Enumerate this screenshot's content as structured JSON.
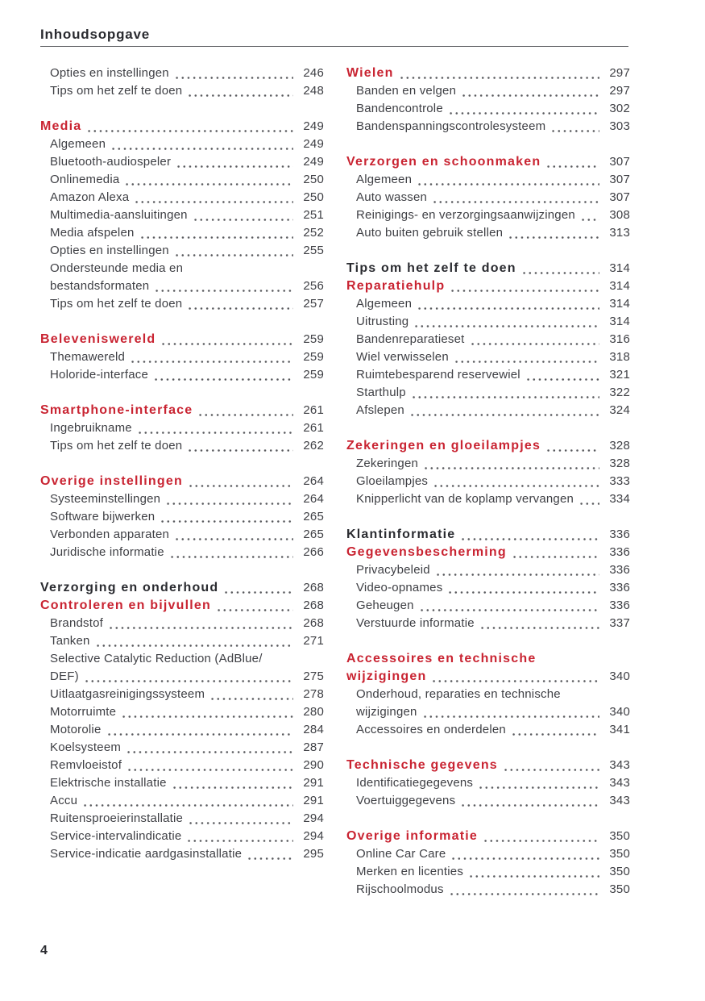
{
  "header": {
    "title": "Inhoudsopgave"
  },
  "footer": {
    "page_number": "4"
  },
  "colors": {
    "accent_red": "#c92432",
    "text": "#3e3f44",
    "heading": "#2a2b30",
    "dot_leader": "#595a5e"
  },
  "toc": {
    "left_column": [
      {
        "items": [
          {
            "t": "Opties en instellingen",
            "p": "246",
            "k": "sub"
          },
          {
            "t": "Tips om het zelf te doen",
            "p": "248",
            "k": "sub"
          }
        ]
      },
      {
        "items": [
          {
            "t": "Media",
            "p": "249",
            "k": "red"
          },
          {
            "t": "Algemeen",
            "p": "249",
            "k": "sub"
          },
          {
            "t": "Bluetooth-audiospeler",
            "p": "249",
            "k": "sub"
          },
          {
            "t": "Onlinemedia",
            "p": "250",
            "k": "sub"
          },
          {
            "t": "Amazon Alexa",
            "p": "250",
            "k": "sub"
          },
          {
            "t": "Multimedia-aansluitingen",
            "p": "251",
            "k": "sub"
          },
          {
            "t": "Media afspelen",
            "p": "252",
            "k": "sub"
          },
          {
            "t": "Opties en instellingen",
            "p": "255",
            "k": "sub"
          },
          {
            "t": "Ondersteunde media en",
            "t2": "bestandsformaten",
            "p": "256",
            "k": "sub"
          },
          {
            "t": "Tips om het zelf te doen",
            "p": "257",
            "k": "sub"
          }
        ]
      },
      {
        "items": [
          {
            "t": "Beleveniswereld",
            "p": "259",
            "k": "red"
          },
          {
            "t": "Themawereld",
            "p": "259",
            "k": "sub"
          },
          {
            "t": "Holoride-interface",
            "p": "259",
            "k": "sub"
          }
        ]
      },
      {
        "items": [
          {
            "t": "Smartphone-interface",
            "p": "261",
            "k": "red"
          },
          {
            "t": "Ingebruikname",
            "p": "261",
            "k": "sub"
          },
          {
            "t": "Tips om het zelf te doen",
            "p": "262",
            "k": "sub"
          }
        ]
      },
      {
        "items": [
          {
            "t": "Overige instellingen",
            "p": "264",
            "k": "red"
          },
          {
            "t": "Systeeminstellingen",
            "p": "264",
            "k": "sub"
          },
          {
            "t": "Software bijwerken",
            "p": "265",
            "k": "sub"
          },
          {
            "t": "Verbonden apparaten",
            "p": "265",
            "k": "sub"
          },
          {
            "t": "Juridische informatie",
            "p": "266",
            "k": "sub"
          }
        ]
      },
      {
        "items": [
          {
            "t": "Verzorging en onderhoud",
            "p": "268",
            "k": "black"
          },
          {
            "t": "Controleren en bijvullen",
            "p": "268",
            "k": "red"
          },
          {
            "t": "Brandstof",
            "p": "268",
            "k": "sub"
          },
          {
            "t": "Tanken",
            "p": "271",
            "k": "sub"
          },
          {
            "t": "Selective Catalytic Reduction (AdBlue/",
            "t2": "DEF)",
            "p": "275",
            "k": "sub"
          },
          {
            "t": "Uitlaatgasreinigingssysteem",
            "p": "278",
            "k": "sub"
          },
          {
            "t": "Motorruimte",
            "p": "280",
            "k": "sub"
          },
          {
            "t": "Motorolie",
            "p": "284",
            "k": "sub"
          },
          {
            "t": "Koelsysteem",
            "p": "287",
            "k": "sub"
          },
          {
            "t": "Remvloeistof",
            "p": "290",
            "k": "sub"
          },
          {
            "t": "Elektrische installatie",
            "p": "291",
            "k": "sub"
          },
          {
            "t": "Accu",
            "p": "291",
            "k": "sub"
          },
          {
            "t": "Ruitensproeierinstallatie",
            "p": "294",
            "k": "sub"
          },
          {
            "t": "Service-intervalindicatie",
            "p": "294",
            "k": "sub"
          },
          {
            "t": "Service-indicatie aardgasinstallatie",
            "p": "295",
            "k": "sub"
          }
        ]
      }
    ],
    "right_column": [
      {
        "items": [
          {
            "t": "Wielen",
            "p": "297",
            "k": "red"
          },
          {
            "t": "Banden en velgen",
            "p": "297",
            "k": "sub"
          },
          {
            "t": "Bandencontrole",
            "p": "302",
            "k": "sub"
          },
          {
            "t": "Bandenspanningscontrolesysteem",
            "p": "303",
            "k": "sub"
          }
        ]
      },
      {
        "items": [
          {
            "t": "Verzorgen en schoonmaken",
            "p": "307",
            "k": "red"
          },
          {
            "t": "Algemeen",
            "p": "307",
            "k": "sub"
          },
          {
            "t": "Auto wassen",
            "p": "307",
            "k": "sub"
          },
          {
            "t": "Reinigings- en verzorgingsaanwijzingen",
            "p": "308",
            "k": "sub"
          },
          {
            "t": "Auto buiten gebruik stellen",
            "p": "313",
            "k": "sub"
          }
        ]
      },
      {
        "items": [
          {
            "t": "Tips om het zelf te doen",
            "p": "314",
            "k": "black"
          },
          {
            "t": "Reparatiehulp",
            "p": "314",
            "k": "red"
          },
          {
            "t": "Algemeen",
            "p": "314",
            "k": "sub"
          },
          {
            "t": "Uitrusting",
            "p": "314",
            "k": "sub"
          },
          {
            "t": "Bandenreparatieset",
            "p": "316",
            "k": "sub"
          },
          {
            "t": "Wiel verwisselen",
            "p": "318",
            "k": "sub"
          },
          {
            "t": "Ruimtebesparend reservewiel",
            "p": "321",
            "k": "sub"
          },
          {
            "t": "Starthulp",
            "p": "322",
            "k": "sub"
          },
          {
            "t": "Afslepen",
            "p": "324",
            "k": "sub"
          }
        ]
      },
      {
        "items": [
          {
            "t": "Zekeringen en gloeilampjes",
            "p": "328",
            "k": "red"
          },
          {
            "t": "Zekeringen",
            "p": "328",
            "k": "sub"
          },
          {
            "t": "Gloeilampjes",
            "p": "333",
            "k": "sub"
          },
          {
            "t": "Knipperlicht van de koplamp vervangen",
            "p": "334",
            "k": "sub"
          }
        ]
      },
      {
        "items": [
          {
            "t": "Klantinformatie",
            "p": "336",
            "k": "black"
          },
          {
            "t": "Gegevensbescherming",
            "p": "336",
            "k": "red"
          },
          {
            "t": "Privacybeleid",
            "p": "336",
            "k": "sub"
          },
          {
            "t": "Video-opnames",
            "p": "336",
            "k": "sub"
          },
          {
            "t": "Geheugen",
            "p": "336",
            "k": "sub"
          },
          {
            "t": "Verstuurde informatie",
            "p": "337",
            "k": "sub"
          }
        ]
      },
      {
        "items": [
          {
            "t": "Accessoires en technische",
            "t2": "wijzigingen",
            "p": "340",
            "k": "red"
          },
          {
            "t": "Onderhoud, reparaties en technische",
            "t2": "wijzigingen",
            "p": "340",
            "k": "sub"
          },
          {
            "t": "Accessoires en onderdelen",
            "p": "341",
            "k": "sub"
          }
        ]
      },
      {
        "items": [
          {
            "t": "Technische gegevens",
            "p": "343",
            "k": "red"
          },
          {
            "t": "Identificatiegegevens",
            "p": "343",
            "k": "sub"
          },
          {
            "t": "Voertuiggegevens",
            "p": "343",
            "k": "sub"
          }
        ]
      },
      {
        "items": [
          {
            "t": "Overige informatie",
            "p": "350",
            "k": "red"
          },
          {
            "t": "Online Car Care",
            "p": "350",
            "k": "sub"
          },
          {
            "t": "Merken en licenties",
            "p": "350",
            "k": "sub"
          },
          {
            "t": "Rijschoolmodus",
            "p": "350",
            "k": "sub"
          }
        ]
      }
    ]
  }
}
